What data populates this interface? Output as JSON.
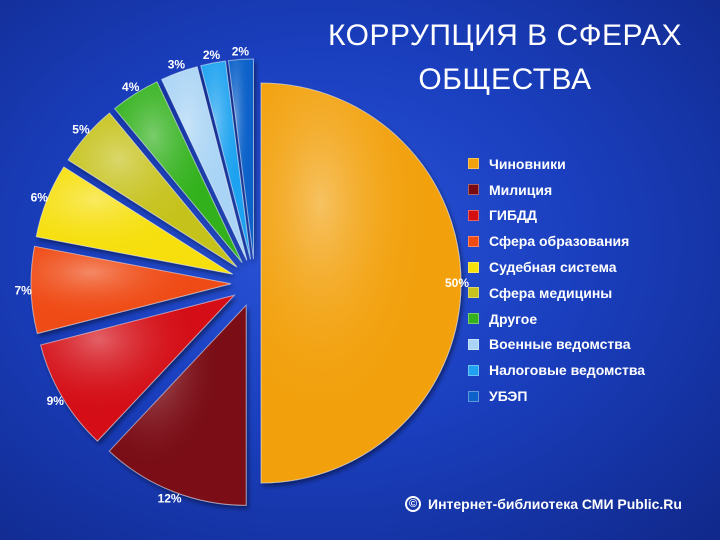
{
  "title_lines": [
    "КОРРУПЦИЯ В СФЕРАХ",
    "ОБЩЕСТВА"
  ],
  "source": {
    "icon": "copyright-icon",
    "symbol": "©",
    "text": "Интернет-библиотека СМИ Public.Ru"
  },
  "chart_data": {
    "type": "pie",
    "title": "КОРРУПЦИЯ В СФЕРАХ ОБЩЕСТВА",
    "legend_position": "right",
    "slices": [
      {
        "label": "Чиновники",
        "value": 50,
        "value_label": "50%",
        "color": "#f2a10c"
      },
      {
        "label": "Милиция",
        "value": 12,
        "value_label": "12%",
        "color": "#7a0a12"
      },
      {
        "label": "ГИБДД",
        "value": 9,
        "value_label": "9%",
        "color": "#d40f12"
      },
      {
        "label": "Сфера образования",
        "value": 7,
        "value_label": "7%",
        "color": "#ef4b12"
      },
      {
        "label": "Судебная система",
        "value": 6,
        "value_label": "6%",
        "color": "#f6df0a"
      },
      {
        "label": "Сфера медицины",
        "value": 5,
        "value_label": "5%",
        "color": "#c6c21e"
      },
      {
        "label": "Другое",
        "value": 4,
        "value_label": "4%",
        "color": "#33b11e"
      },
      {
        "label": "Военные ведомства",
        "value": 3,
        "value_label": "3%",
        "color": "#a9d4f5"
      },
      {
        "label": "Налоговые ведомства",
        "value": 2,
        "value_label": "2%",
        "color": "#1fa2f0"
      },
      {
        "label": "УБЭП",
        "value": 2,
        "value_label": "2%",
        "color": "#0d62c9"
      }
    ]
  }
}
